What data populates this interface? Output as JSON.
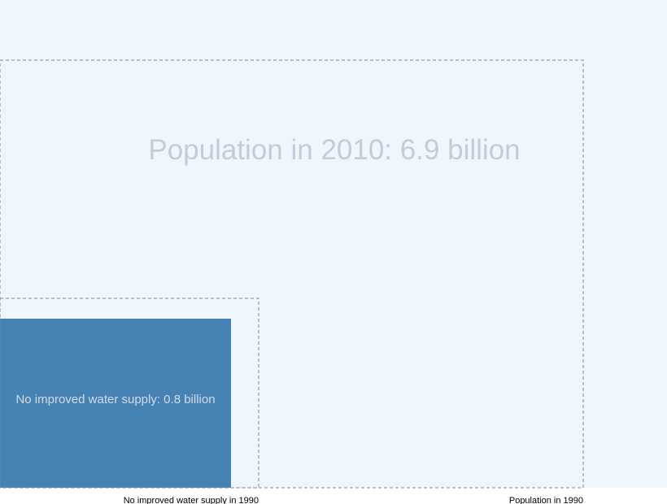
{
  "chart_data": {
    "type": "area-comparison",
    "unit": "billion",
    "colors": {
      "background": "#EEF6FE",
      "fill": "#4682B4",
      "dashed_outline": "#888888",
      "big_label": "#C4CDD6",
      "inner_label": "#D3DCE5",
      "caption": "#000000"
    },
    "squares": [
      {
        "name": "population-2010",
        "label": "Population in 2010: 6.9 billion",
        "value": 6.9,
        "style": "background"
      },
      {
        "name": "population-1990",
        "caption": "Population in 1990",
        "value": 5.3,
        "style": "dashed"
      },
      {
        "name": "no-water-1990",
        "caption": "No improved water supply in 1990",
        "value": 1.1,
        "style": "dashed"
      },
      {
        "name": "no-water-2010",
        "label": "No improved water supply: 0.8 billion",
        "value": 0.8,
        "style": "filled"
      }
    ]
  }
}
